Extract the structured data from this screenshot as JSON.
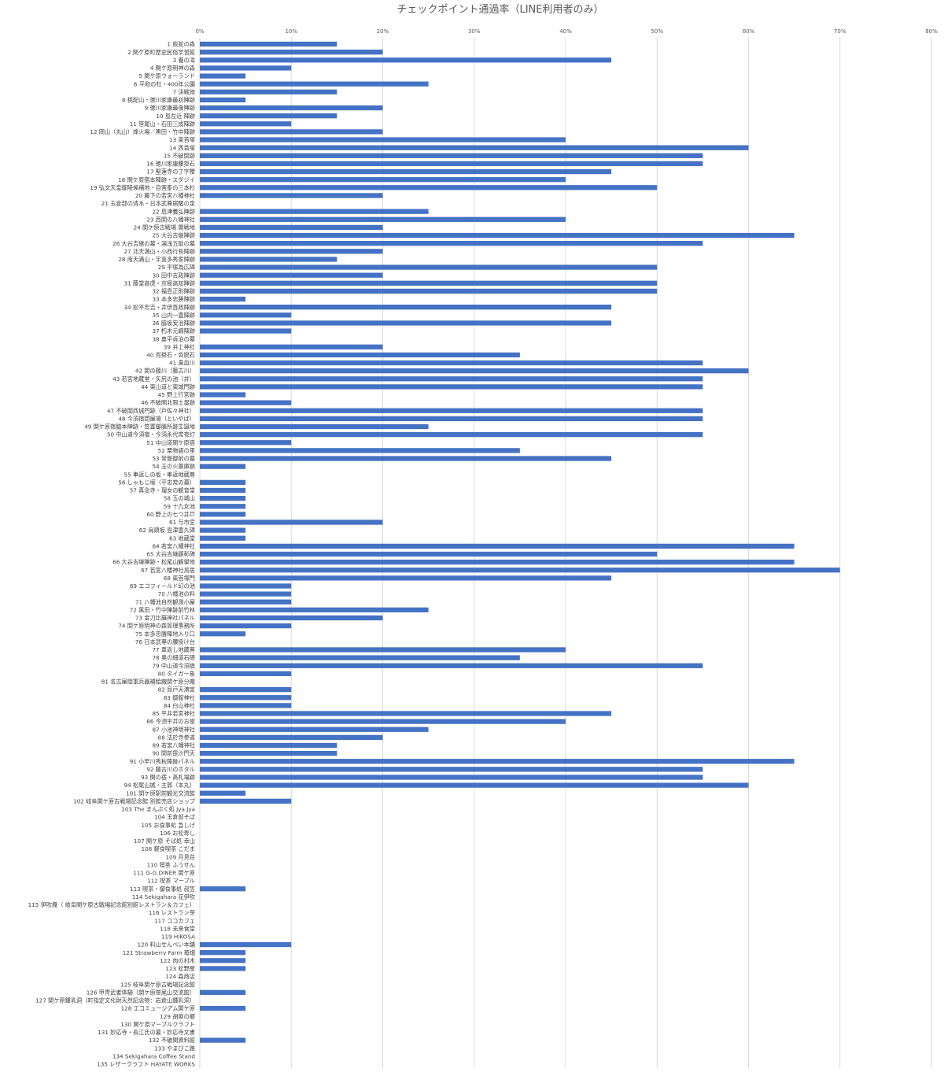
{
  "chart_data": {
    "type": "bar",
    "orientation": "horizontal",
    "title": "チェックポイント通過率（LINE利用者のみ）",
    "xlabel": "",
    "ylabel": "",
    "xlim": [
      0,
      0.8
    ],
    "x_tick_labels": [
      "0%",
      "10%",
      "20%",
      "30%",
      "40%",
      "50%",
      "60%",
      "70%",
      "80%"
    ],
    "grid": "vertical",
    "series_color": "#4472c4",
    "categories": [
      "1 底蛇の森",
      "2 関ケ原町歴史民俗学習館",
      "3 養の滝",
      "4 関ケ原明神の森",
      "5 関ケ原ウォーランド",
      "6 平和の杜・400年公園",
      "7 決戦地",
      "8 桃配山・徳川家康最初陣跡",
      "9 徳川家康最後陣跡",
      "10 島左近 陣跡",
      "11 笹尾山・石田三成陣跡",
      "12 岡山（丸山）烽火場／黒田・竹中陣跡",
      "13 東首塚",
      "14 西首塚",
      "15 不破関跡",
      "16 徳川家康腰掛石",
      "17 聖蓮寺の丁字櫻",
      "18 関ケ原宿本陣跡・スダジイ",
      "19 弘文天皇御陵候補地・自害峯の三本杉",
      "20 藤下の若宮八幡神社",
      "21 玉倉部の清水・日本武尊居醒の泉",
      "22 島津義弘陣跡",
      "23 西関の八幡神社",
      "24 関ケ原古戦場 開戦地",
      "25 大谷吉継陣跡",
      "26 大谷吉継の墓・湯浅五助の墓",
      "27 北天満山・小西行長陣跡",
      "28 南天満山・宇喜多秀家陣跡",
      "29 平塚為広碑",
      "30 田中吉政陣跡",
      "31 藤堂高虎・京極高知陣跡",
      "32 福島正則陣跡",
      "33 本多忠勝陣跡",
      "34 松平忠吉・井伊直政陣跡",
      "35 山内一豊陣跡",
      "36 脇坂安治陣跡",
      "37 朽木元綱陣跡",
      "38 奥平貞治の墓",
      "39 井上神社",
      "40 兜掛石・沓脱石",
      "41 黒血川",
      "42 関の藤川（藤古川）",
      "43 若宮地蔵堂・矢尻の池（井）",
      "44 東山道と東城門跡",
      "45 野上行宮跡",
      "46 不破関北限土塁跡",
      "47 不破関西城門跡（戸佐々神社）",
      "48 今須宿問屋場（といやば）",
      "49 関ケ原宿脇本陣跡・笠置御膳所跡生誕地",
      "50 中山道今須宿・今須永代常夜灯",
      "51 中山道関ケ原宿",
      "52 栗物語の里",
      "53 常盤御前の墓",
      "54 玉の火薬庫跡",
      "55 車返しの坂・車返地蔵尊",
      "56 しゃもじ塚（平忠常の墓）",
      "57 真念寺・瑠女の観音堂",
      "58 玉の城山",
      "59 十九女池",
      "60 野上の七つ井戸",
      "61 与市宮",
      "62 烏頭坂 島津豊久碑",
      "63 地蔵堂",
      "64 若宮八幡神社",
      "65 大谷吉継顕彰碑",
      "66 大谷吉継陣跡・松尾山観望地",
      "67 若宮八幡神社鳥居",
      "68 東首塚門",
      "69 エコフィールド幻の池",
      "70 八幡池の料",
      "71 八幡池自然観測小屋",
      "72 黒田・竹中陣跡前竹林",
      "73 金刀比羅神社パネル",
      "74 関ケ原明神の森管理事務所",
      "75 本多忠勝陣地入り口",
      "76 日本武尊の腰掛け台",
      "77 車返し地蔵尊",
      "78 奥の細道石碑",
      "79 中山道今須宿",
      "80 タイガー象",
      "81 名古屋陸軍兵器補給廠関ケ原分廠",
      "82 貝戸天満宮",
      "83 御舘神社",
      "84 白山神社",
      "85 平井若宮神社",
      "86 今須平井のお堂",
      "87 小池神明神社",
      "88 法於寺参道",
      "89 若宮八幡神社",
      "90 関前毘沙門天",
      "91 小早川秀秋陣跡パネル",
      "92 藤古川のホタル",
      "93 関の宿・高札場跡",
      "94 松尾山城・主郭（本丸）",
      "101 関ケ原駅前観光交流館",
      "102 岐阜関ケ原古戦場記念館 別館売店ショップ",
      "103 The まんぷく処 Jya Jya",
      "104 玉倉部そば",
      "105 お食事処 急しげ",
      "106 お松寿し",
      "107 関ケ原 そば処 幸山",
      "108 軽食喫茶 こだま",
      "109 月見荘",
      "110 喫茶 ふうせん",
      "111 G-G DINER 関ケ原",
      "112 喫茶 マーブル",
      "113 喫茶・御食事処 叔笠",
      "114 Sekigahara 花伊吹",
      "115 伊吹庵（ 岐阜関ケ原古戦場記念館別館レストラン＆カフェ）",
      "116 レストラン芽",
      "117 ココカフェ",
      "118 未来食堂",
      "119 HIKOSA",
      "120 料山せんべい本舗",
      "121 Strawberry Farm 苺畑",
      "122 肉の村木",
      "123 松野屋",
      "124 森商店",
      "125 岐阜関ケ原古戦場記念館",
      "126 甲冑武者体験（関ケ原笹尾山交流館）",
      "127 関ケ原鍾乳洞（町指定文化財天然記念物：岩倉山鍾乳洞）",
      "128 エコミュージアム関ケ原",
      "129 胡麻の郷",
      "130 関ケ原マーブルクラフト",
      "131 妙応寺・長江氏の墓・妙応寺文書",
      "132 不破関資料館",
      "133 やまびこ路",
      "134 Sekigahara Coffee Stand",
      "135 レザークラフト HAYATE WORKS"
    ],
    "values": [
      0.15,
      0.2,
      0.45,
      0.1,
      0.05,
      0.25,
      0.15,
      0.05,
      0.2,
      0.15,
      0.1,
      0.2,
      0.4,
      0.6,
      0.55,
      0.55,
      0.45,
      0.4,
      0.5,
      0.2,
      0,
      0.25,
      0.4,
      0.2,
      0.65,
      0.55,
      0.2,
      0.15,
      0.5,
      0.2,
      0.5,
      0.5,
      0.05,
      0.45,
      0.1,
      0.45,
      0.1,
      0,
      0.2,
      0.35,
      0.55,
      0.6,
      0.55,
      0.55,
      0.05,
      0.1,
      0.55,
      0.55,
      0.25,
      0.55,
      0.1,
      0.35,
      0.45,
      0.05,
      0,
      0.05,
      0.05,
      0.05,
      0.05,
      0.05,
      0.2,
      0.05,
      0.05,
      0.65,
      0.5,
      0.65,
      0.7,
      0.45,
      0.1,
      0.1,
      0.1,
      0.25,
      0.2,
      0.1,
      0.05,
      0,
      0.4,
      0.35,
      0.55,
      0.1,
      0,
      0.1,
      0.1,
      0.1,
      0.45,
      0.4,
      0.25,
      0.2,
      0.15,
      0.15,
      0.65,
      0.55,
      0.55,
      0.6,
      0.05,
      0.1,
      0,
      0,
      0,
      0,
      0,
      0,
      0,
      0,
      0,
      0,
      0.05,
      0,
      0,
      0,
      0,
      0,
      0,
      0.1,
      0.05,
      0.05,
      0.05,
      0,
      0,
      0.05,
      0,
      0.05,
      0,
      0,
      0,
      0.05,
      0,
      0,
      0
    ]
  }
}
